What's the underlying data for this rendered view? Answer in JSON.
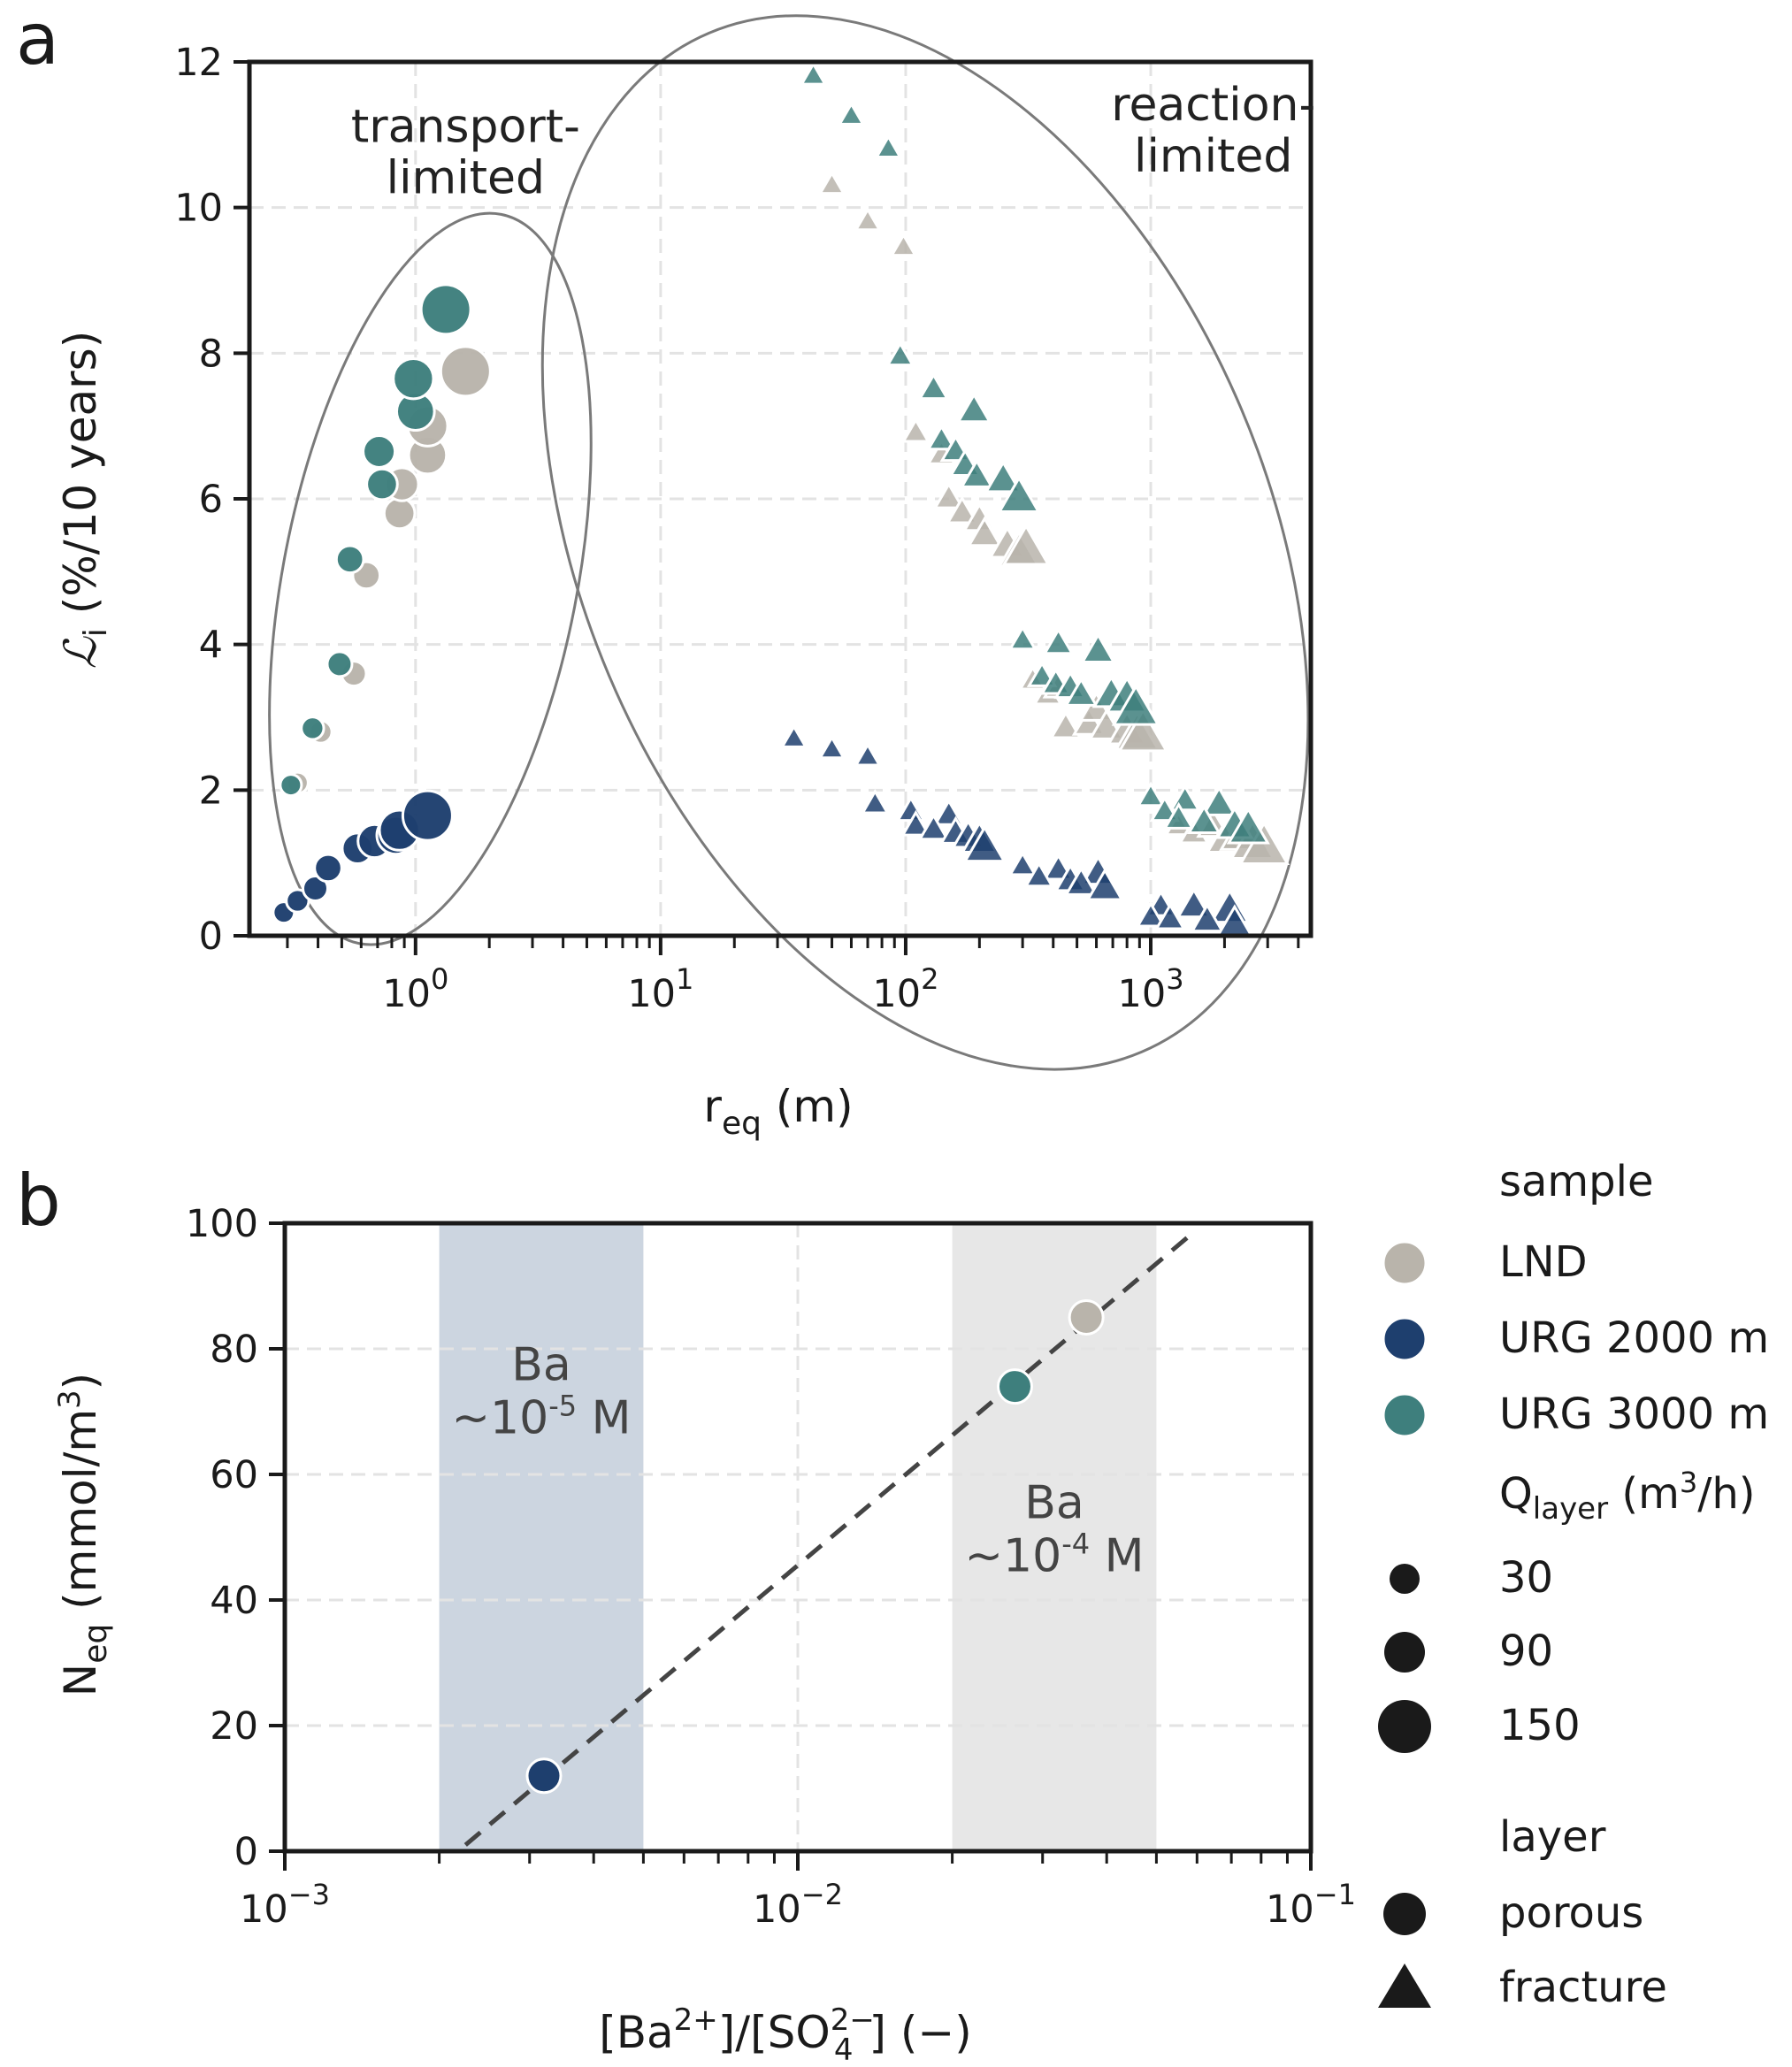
{
  "figure": {
    "panel_a_label": "a",
    "panel_b_label": "b"
  },
  "colors": {
    "LND": "#b9b4ab",
    "URG 2000 m": "#1e3f6e",
    "URG 3000 m": "#3e7f7d",
    "band_blue": "#ccd5e0",
    "band_grey": "#e7e7e7",
    "fit_line": "#444444",
    "ellipse": "#7a7a7a"
  },
  "chart_data": [
    {
      "panel": "a",
      "type": "scatter",
      "xlabel": "r",
      "xlabel_sub": "eq",
      "xlabel_unit": "(m)",
      "ylabel": "ℒ",
      "ylabel_sub": "i",
      "ylabel_unit": "(%/10 years)",
      "xscale": "log",
      "xlim": [
        0.21,
        4500
      ],
      "ylim": [
        0,
        12
      ],
      "yticks": [
        0,
        2,
        4,
        6,
        8,
        10,
        12
      ],
      "xticks": [
        {
          "value": 1,
          "base": "10",
          "exp": "0"
        },
        {
          "value": 10,
          "base": "10",
          "exp": "1"
        },
        {
          "value": 100,
          "base": "10",
          "exp": "2"
        },
        {
          "value": 1000,
          "base": "10",
          "exp": "3"
        }
      ],
      "grid": true,
      "annotations": [
        {
          "lines": [
            "transport-",
            "limited"
          ],
          "x": 1.6,
          "y": 10.9
        },
        {
          "lines": [
            "reaction-",
            "limited"
          ],
          "x": 1800,
          "y": 11.2
        }
      ],
      "ellipses": [
        {
          "label": "transport-limited",
          "cx_log": 0.06,
          "cy": 4.9,
          "rx_log": 0.6,
          "ry": 5.1,
          "rot": 11
        },
        {
          "label": "reaction-limited",
          "cx_log": 2.08,
          "cy": 5.4,
          "rx_log": 1.4,
          "ry": 7.6,
          "rot": -23
        }
      ],
      "series": [
        {
          "sample": "LND",
          "layer": "porous",
          "points": [
            {
              "x": 0.33,
              "y": 2.1,
              "q": 30
            },
            {
              "x": 0.41,
              "y": 2.8,
              "q": 35
            },
            {
              "x": 0.56,
              "y": 3.6,
              "q": 45
            },
            {
              "x": 0.63,
              "y": 4.95,
              "q": 55
            },
            {
              "x": 0.86,
              "y": 5.8,
              "q": 70
            },
            {
              "x": 0.88,
              "y": 6.2,
              "q": 80
            },
            {
              "x": 1.12,
              "y": 6.6,
              "q": 100
            },
            {
              "x": 1.12,
              "y": 7.0,
              "q": 110
            },
            {
              "x": 1.6,
              "y": 7.75,
              "q": 150
            }
          ]
        },
        {
          "sample": "URG 3000 m",
          "layer": "porous",
          "points": [
            {
              "x": 0.31,
              "y": 2.07,
              "q": 30
            },
            {
              "x": 0.38,
              "y": 2.85,
              "q": 35
            },
            {
              "x": 0.49,
              "y": 3.73,
              "q": 45
            },
            {
              "x": 0.54,
              "y": 5.17,
              "q": 55
            },
            {
              "x": 0.73,
              "y": 6.2,
              "q": 70
            },
            {
              "x": 0.71,
              "y": 6.65,
              "q": 75
            },
            {
              "x": 1.0,
              "y": 7.2,
              "q": 100
            },
            {
              "x": 0.98,
              "y": 7.65,
              "q": 110
            },
            {
              "x": 1.33,
              "y": 8.6,
              "q": 150
            }
          ]
        },
        {
          "sample": "URG 2000 m",
          "layer": "porous",
          "points": [
            {
              "x": 0.29,
              "y": 0.32,
              "q": 30
            },
            {
              "x": 0.33,
              "y": 0.48,
              "q": 35
            },
            {
              "x": 0.39,
              "y": 0.65,
              "q": 45
            },
            {
              "x": 0.44,
              "y": 0.93,
              "q": 55
            },
            {
              "x": 0.58,
              "y": 1.2,
              "q": 70
            },
            {
              "x": 0.68,
              "y": 1.3,
              "q": 80
            },
            {
              "x": 0.83,
              "y": 1.38,
              "q": 100
            },
            {
              "x": 0.86,
              "y": 1.45,
              "q": 110
            },
            {
              "x": 1.12,
              "y": 1.65,
              "q": 150
            }
          ]
        },
        {
          "sample": "LND",
          "layer": "fracture",
          "points": [
            {
              "x": 50,
              "y": 10.3,
              "q": 30
            },
            {
              "x": 70,
              "y": 9.8,
              "q": 30
            },
            {
              "x": 98,
              "y": 9.45,
              "q": 30
            },
            {
              "x": 110,
              "y": 6.9,
              "q": 35
            },
            {
              "x": 140,
              "y": 6.6,
              "q": 40
            },
            {
              "x": 150,
              "y": 6.0,
              "q": 45
            },
            {
              "x": 170,
              "y": 5.8,
              "q": 50
            },
            {
              "x": 200,
              "y": 5.7,
              "q": 55
            },
            {
              "x": 210,
              "y": 5.5,
              "q": 60
            },
            {
              "x": 260,
              "y": 5.35,
              "q": 70
            },
            {
              "x": 290,
              "y": 5.25,
              "q": 90
            },
            {
              "x": 310,
              "y": 5.3,
              "q": 110
            },
            {
              "x": 330,
              "y": 3.5,
              "q": 35
            },
            {
              "x": 380,
              "y": 3.3,
              "q": 40
            },
            {
              "x": 420,
              "y": 3.4,
              "q": 45
            },
            {
              "x": 450,
              "y": 2.85,
              "q": 50
            },
            {
              "x": 560,
              "y": 2.9,
              "q": 55
            },
            {
              "x": 600,
              "y": 3.1,
              "q": 60
            },
            {
              "x": 660,
              "y": 2.85,
              "q": 65
            },
            {
              "x": 800,
              "y": 2.8,
              "q": 80
            },
            {
              "x": 880,
              "y": 2.75,
              "q": 100
            },
            {
              "x": 930,
              "y": 2.75,
              "q": 120
            },
            {
              "x": 1300,
              "y": 1.5,
              "q": 35
            },
            {
              "x": 1500,
              "y": 1.4,
              "q": 45
            },
            {
              "x": 1800,
              "y": 1.5,
              "q": 55
            },
            {
              "x": 2000,
              "y": 1.3,
              "q": 70
            },
            {
              "x": 2300,
              "y": 1.35,
              "q": 80
            },
            {
              "x": 2600,
              "y": 1.25,
              "q": 100
            },
            {
              "x": 2900,
              "y": 1.2,
              "q": 120
            }
          ]
        },
        {
          "sample": "URG 3000 m",
          "layer": "fracture",
          "points": [
            {
              "x": 42,
              "y": 11.8,
              "q": 30
            },
            {
              "x": 60,
              "y": 11.25,
              "q": 30
            },
            {
              "x": 85,
              "y": 10.8,
              "q": 30
            },
            {
              "x": 95,
              "y": 7.95,
              "q": 35
            },
            {
              "x": 130,
              "y": 7.5,
              "q": 45
            },
            {
              "x": 190,
              "y": 7.2,
              "q": 60
            },
            {
              "x": 140,
              "y": 6.8,
              "q": 40
            },
            {
              "x": 160,
              "y": 6.65,
              "q": 45
            },
            {
              "x": 175,
              "y": 6.45,
              "q": 50
            },
            {
              "x": 195,
              "y": 6.3,
              "q": 55
            },
            {
              "x": 250,
              "y": 6.25,
              "q": 70
            },
            {
              "x": 290,
              "y": 6.0,
              "q": 90
            },
            {
              "x": 300,
              "y": 4.05,
              "q": 35
            },
            {
              "x": 420,
              "y": 4.0,
              "q": 45
            },
            {
              "x": 610,
              "y": 3.9,
              "q": 60
            },
            {
              "x": 360,
              "y": 3.55,
              "q": 40
            },
            {
              "x": 410,
              "y": 3.45,
              "q": 45
            },
            {
              "x": 470,
              "y": 3.4,
              "q": 50
            },
            {
              "x": 520,
              "y": 3.3,
              "q": 55
            },
            {
              "x": 690,
              "y": 3.3,
              "q": 70
            },
            {
              "x": 800,
              "y": 3.25,
              "q": 90
            },
            {
              "x": 870,
              "y": 3.1,
              "q": 110
            },
            {
              "x": 1000,
              "y": 1.9,
              "q": 35
            },
            {
              "x": 1380,
              "y": 1.85,
              "q": 45
            },
            {
              "x": 1900,
              "y": 1.8,
              "q": 60
            },
            {
              "x": 1140,
              "y": 1.7,
              "q": 40
            },
            {
              "x": 1300,
              "y": 1.6,
              "q": 45
            },
            {
              "x": 1650,
              "y": 1.55,
              "q": 55
            },
            {
              "x": 2200,
              "y": 1.5,
              "q": 70
            },
            {
              "x": 2500,
              "y": 1.45,
              "q": 90
            }
          ]
        },
        {
          "sample": "URG 2000 m",
          "layer": "fracture",
          "points": [
            {
              "x": 35,
              "y": 2.7,
              "q": 30
            },
            {
              "x": 50,
              "y": 2.55,
              "q": 30
            },
            {
              "x": 70,
              "y": 2.45,
              "q": 30
            },
            {
              "x": 75,
              "y": 1.8,
              "q": 35
            },
            {
              "x": 105,
              "y": 1.7,
              "q": 40
            },
            {
              "x": 150,
              "y": 1.65,
              "q": 45
            },
            {
              "x": 110,
              "y": 1.5,
              "q": 40
            },
            {
              "x": 130,
              "y": 1.45,
              "q": 45
            },
            {
              "x": 160,
              "y": 1.4,
              "q": 50
            },
            {
              "x": 180,
              "y": 1.35,
              "q": 55
            },
            {
              "x": 200,
              "y": 1.3,
              "q": 70
            },
            {
              "x": 210,
              "y": 1.2,
              "q": 90
            },
            {
              "x": 300,
              "y": 0.95,
              "q": 35
            },
            {
              "x": 420,
              "y": 0.9,
              "q": 45
            },
            {
              "x": 610,
              "y": 0.85,
              "q": 60
            },
            {
              "x": 350,
              "y": 0.8,
              "q": 40
            },
            {
              "x": 470,
              "y": 0.75,
              "q": 50
            },
            {
              "x": 520,
              "y": 0.7,
              "q": 55
            },
            {
              "x": 650,
              "y": 0.65,
              "q": 70
            },
            {
              "x": 1100,
              "y": 0.4,
              "q": 45
            },
            {
              "x": 1500,
              "y": 0.4,
              "q": 60
            },
            {
              "x": 2100,
              "y": 0.35,
              "q": 80
            },
            {
              "x": 1000,
              "y": 0.25,
              "q": 40
            },
            {
              "x": 1200,
              "y": 0.22,
              "q": 45
            },
            {
              "x": 1700,
              "y": 0.2,
              "q": 55
            },
            {
              "x": 2200,
              "y": 0.15,
              "q": 70
            }
          ]
        }
      ]
    },
    {
      "panel": "b",
      "type": "scatter",
      "xlabel": "[Ba²⁺]/[SO₄²⁻] (−)",
      "xlabel_parts": {
        "open1": "[Ba",
        "sup1": "2+",
        "mid": "]/[SO",
        "sub2": "4",
        "sup2": "2−",
        "close": "] (−)"
      },
      "ylabel": "N",
      "ylabel_sub": "eq",
      "ylabel_unit": "(mmol/m",
      "ylabel_unit_sup": "3",
      "ylabel_unit_end": ")",
      "xscale": "log",
      "xlim": [
        0.001,
        0.1
      ],
      "ylim": [
        0,
        100
      ],
      "yticks": [
        0,
        20,
        40,
        60,
        80,
        100
      ],
      "xticks": [
        {
          "value": 0.001,
          "base": "10",
          "exp": "−3"
        },
        {
          "value": 0.01,
          "base": "10",
          "exp": "−2"
        },
        {
          "value": 0.1,
          "base": "10",
          "exp": "−1"
        }
      ],
      "grid": true,
      "bands": [
        {
          "x0": 0.002,
          "x1": 0.005,
          "color_key": "band_blue",
          "label": "Ba",
          "label2": "~10",
          "label2_sup": "-5",
          "label2_end": " M",
          "label_y": 75
        },
        {
          "x0": 0.02,
          "x1": 0.05,
          "color_key": "band_grey",
          "label": "Ba",
          "label2": "~10",
          "label2_sup": "-4",
          "label2_end": " M",
          "label_y": 53
        }
      ],
      "fit_line": {
        "x": [
          0.00225,
          0.058
        ],
        "y": [
          1,
          98
        ],
        "style": "dashed"
      },
      "points": [
        {
          "sample": "URG 2000 m",
          "x": 0.0032,
          "y": 12
        },
        {
          "sample": "URG 3000 m",
          "x": 0.0265,
          "y": 74
        },
        {
          "sample": "LND",
          "x": 0.0365,
          "y": 85
        }
      ]
    }
  ],
  "legend": {
    "sample_title": "sample",
    "samples": [
      "LND",
      "URG 2000 m",
      "URG 3000 m"
    ],
    "q_title": "Q",
    "q_title_sub": "layer",
    "q_title_unit": "(m",
    "q_title_unit_sup": "3",
    "q_title_unit_end": "/h)",
    "q_values": [
      30,
      90,
      150
    ],
    "layer_title": "layer",
    "layers": [
      "porous",
      "fracture"
    ]
  }
}
